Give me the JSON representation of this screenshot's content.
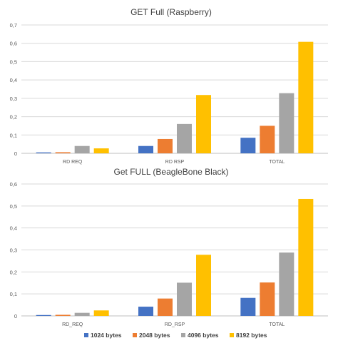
{
  "chart_data": [
    {
      "type": "bar",
      "title": "GET Full (Raspberry)",
      "categories": [
        "RD_REQ",
        "RD_RSP",
        "TOTAL"
      ],
      "category_labels": [
        "RD  REQ",
        "RD  RSP",
        "TOTAL"
      ],
      "ylim": [
        0,
        0.7
      ],
      "yticks": [
        "0",
        "0,1",
        "0,2",
        "0,3",
        "0,4",
        "0,5",
        "0,6",
        "0,7"
      ],
      "grid": true,
      "series": [
        {
          "name": "1024 bytes",
          "color": "#4472c4",
          "values": [
            0.005,
            0.04,
            0.085
          ]
        },
        {
          "name": "2048 bytes",
          "color": "#ed7d31",
          "values": [
            0.006,
            0.078,
            0.15
          ]
        },
        {
          "name": "4096 bytes",
          "color": "#a5a5a5",
          "values": [
            0.04,
            0.16,
            0.328
          ]
        },
        {
          "name": "8192 bytes",
          "color": "#ffc000",
          "values": [
            0.027,
            0.318,
            0.608
          ]
        }
      ]
    },
    {
      "type": "bar",
      "title": "Get FULL (BeagleBone Black)",
      "categories": [
        "RD_REQ",
        "RD_RSP",
        "TOTAL"
      ],
      "category_labels": [
        "RD_REQ",
        "RD_RSP",
        "TOTAL"
      ],
      "ylim": [
        0,
        0.6
      ],
      "yticks": [
        "0",
        "0,1",
        "0,2",
        "0,3",
        "0,4",
        "0,5",
        "0,6"
      ],
      "grid": true,
      "legend_position": "bottom",
      "series": [
        {
          "name": "1024 bytes",
          "color": "#4472c4",
          "values": [
            0.004,
            0.042,
            0.082
          ]
        },
        {
          "name": "2048 bytes",
          "color": "#ed7d31",
          "values": [
            0.005,
            0.079,
            0.152
          ]
        },
        {
          "name": "4096 bytes",
          "color": "#a5a5a5",
          "values": [
            0.014,
            0.151,
            0.288
          ]
        },
        {
          "name": "8192 bytes",
          "color": "#ffc000",
          "values": [
            0.025,
            0.278,
            0.532
          ]
        }
      ]
    }
  ]
}
